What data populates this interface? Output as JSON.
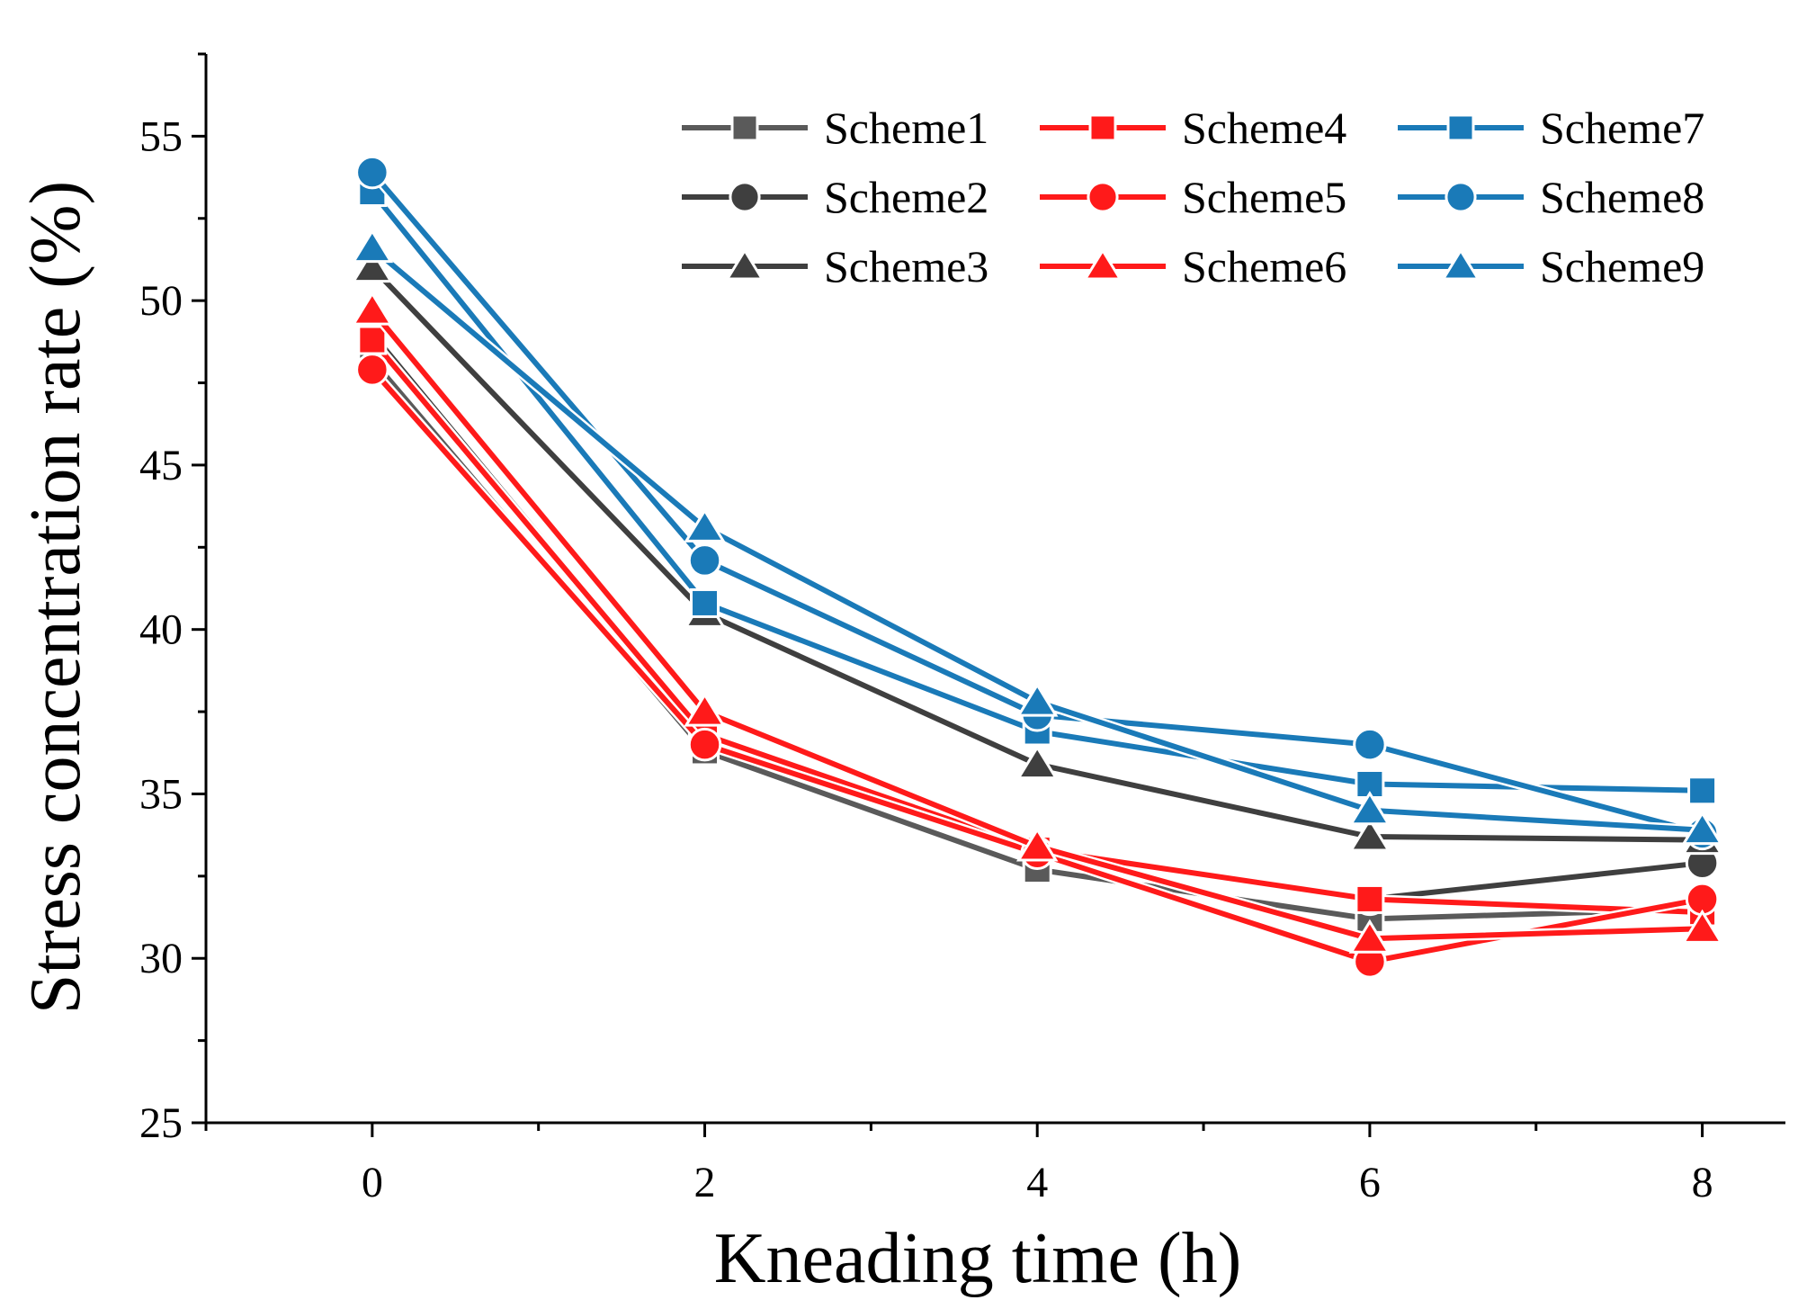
{
  "chart_data": {
    "type": "line",
    "title": "",
    "xlabel": "Kneading time (h)",
    "ylabel": "Stress concentration rate (%)",
    "xlim": [
      -1,
      8.5
    ],
    "ylim": [
      25,
      57.5
    ],
    "xticks": [
      0,
      2,
      4,
      6,
      8
    ],
    "yticks": [
      25,
      30,
      35,
      40,
      45,
      50,
      55
    ],
    "grid": false,
    "legend_position": "top-right",
    "x": [
      0,
      2,
      4,
      6,
      8
    ],
    "series": [
      {
        "name": "Scheme1",
        "color": "#5a5a5a",
        "marker": "square",
        "values": [
          48.2,
          36.3,
          32.7,
          31.2,
          31.5
        ]
      },
      {
        "name": "Scheme2",
        "color": "#3f3f3f",
        "marker": "circle",
        "values": [
          49.0,
          36.8,
          33.3,
          31.8,
          32.9
        ]
      },
      {
        "name": "Scheme3",
        "color": "#3f3f3f",
        "marker": "triangle",
        "values": [
          51.0,
          40.5,
          35.9,
          33.7,
          33.6
        ]
      },
      {
        "name": "Scheme4",
        "color": "#ff1a1a",
        "marker": "square",
        "values": [
          48.8,
          36.8,
          33.3,
          31.8,
          31.4
        ]
      },
      {
        "name": "Scheme5",
        "color": "#ff1a1a",
        "marker": "circle",
        "values": [
          47.9,
          36.5,
          33.2,
          29.9,
          31.8
        ]
      },
      {
        "name": "Scheme6",
        "color": "#ff1a1a",
        "marker": "triangle",
        "values": [
          49.7,
          37.5,
          33.4,
          30.6,
          30.9
        ]
      },
      {
        "name": "Scheme7",
        "color": "#1a7ab8",
        "marker": "square",
        "values": [
          53.3,
          40.8,
          36.9,
          35.3,
          35.1
        ]
      },
      {
        "name": "Scheme8",
        "color": "#1a7ab8",
        "marker": "circle",
        "values": [
          53.9,
          42.1,
          37.4,
          36.5,
          33.8
        ]
      },
      {
        "name": "Scheme9",
        "color": "#1a7ab8",
        "marker": "triangle",
        "values": [
          51.6,
          43.1,
          37.8,
          34.5,
          33.9
        ]
      }
    ]
  }
}
